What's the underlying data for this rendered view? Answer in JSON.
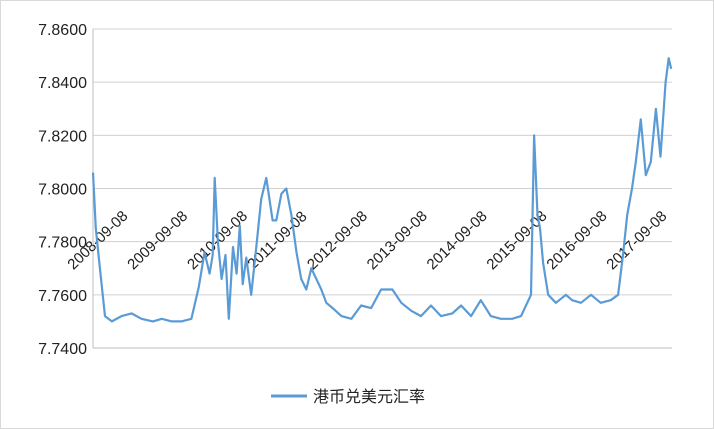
{
  "chart_data": {
    "type": "line",
    "title": "",
    "xlabel": "",
    "ylabel": "",
    "ylim": [
      7.74,
      7.86
    ],
    "y_ticks": [
      "7.8600",
      "7.8400",
      "7.8200",
      "7.8000",
      "7.7800",
      "7.7600",
      "7.7400"
    ],
    "y_tick_values": [
      7.86,
      7.84,
      7.82,
      7.8,
      7.78,
      7.76,
      7.74
    ],
    "x_tick_labels": [
      "2008-09-08",
      "2009-09-08",
      "2010-09-08",
      "2011-09-08",
      "2012-09-08",
      "2013-09-08",
      "2014-09-08",
      "2015-09-08",
      "2016-09-08",
      "2017-09-08"
    ],
    "grid": true,
    "legend_position": "bottom",
    "series": [
      {
        "name": "港币兑美元汇率",
        "color": "#5b9bd5",
        "x": [
          "2008-09-08",
          "2008-09-25",
          "2008-10-20",
          "2008-11-20",
          "2009-01-01",
          "2009-03-01",
          "2009-05-01",
          "2009-07-01",
          "2009-09-08",
          "2009-11-01",
          "2010-01-01",
          "2010-03-01",
          "2010-05-01",
          "2010-06-15",
          "2010-07-20",
          "2010-08-20",
          "2010-09-08",
          "2010-09-20",
          "2010-10-10",
          "2010-11-01",
          "2010-11-25",
          "2010-12-15",
          "2011-01-10",
          "2011-02-01",
          "2011-02-20",
          "2011-03-10",
          "2011-04-01",
          "2011-05-01",
          "2011-06-01",
          "2011-07-01",
          "2011-08-01",
          "2011-09-08",
          "2011-10-01",
          "2011-11-01",
          "2011-12-01",
          "2012-01-01",
          "2012-02-01",
          "2012-03-01",
          "2012-04-01",
          "2012-05-01",
          "2012-06-01",
          "2012-07-01",
          "2012-08-01",
          "2012-09-08",
          "2012-11-01",
          "2013-01-01",
          "2013-03-01",
          "2013-05-01",
          "2013-07-01",
          "2013-09-08",
          "2013-11-01",
          "2014-01-01",
          "2014-03-01",
          "2014-05-01",
          "2014-07-01",
          "2014-09-08",
          "2014-11-01",
          "2015-01-01",
          "2015-03-01",
          "2015-05-01",
          "2015-07-01",
          "2015-09-08",
          "2015-11-01",
          "2016-01-01",
          "2016-01-20",
          "2016-02-10",
          "2016-02-25",
          "2016-03-15",
          "2016-04-15",
          "2016-06-01",
          "2016-08-01",
          "2016-09-08",
          "2016-11-01",
          "2017-01-01",
          "2017-03-01",
          "2017-05-01",
          "2017-06-15",
          "2017-07-15",
          "2017-08-10",
          "2017-09-08",
          "2017-10-01",
          "2017-11-01",
          "2017-12-01",
          "2018-01-01",
          "2018-02-01",
          "2018-03-01",
          "2018-04-01",
          "2018-04-20",
          "2018-05-05"
        ],
        "y": [
          7.806,
          7.785,
          7.77,
          7.752,
          7.75,
          7.752,
          7.753,
          7.751,
          7.75,
          7.751,
          7.75,
          7.75,
          7.751,
          7.763,
          7.776,
          7.768,
          7.775,
          7.804,
          7.78,
          7.766,
          7.775,
          7.751,
          7.778,
          7.768,
          7.786,
          7.764,
          7.774,
          7.76,
          7.778,
          7.796,
          7.804,
          7.788,
          7.788,
          7.798,
          7.8,
          7.79,
          7.776,
          7.766,
          7.762,
          7.77,
          7.766,
          7.762,
          7.757,
          7.755,
          7.752,
          7.751,
          7.756,
          7.755,
          7.762,
          7.762,
          7.757,
          7.754,
          7.752,
          7.756,
          7.752,
          7.753,
          7.756,
          7.752,
          7.758,
          7.752,
          7.751,
          7.751,
          7.752,
          7.76,
          7.82,
          7.79,
          7.785,
          7.772,
          7.76,
          7.757,
          7.76,
          7.758,
          7.757,
          7.76,
          7.757,
          7.758,
          7.76,
          7.775,
          7.79,
          7.8,
          7.81,
          7.826,
          7.805,
          7.81,
          7.83,
          7.812,
          7.84,
          7.849,
          7.845
        ]
      }
    ]
  }
}
